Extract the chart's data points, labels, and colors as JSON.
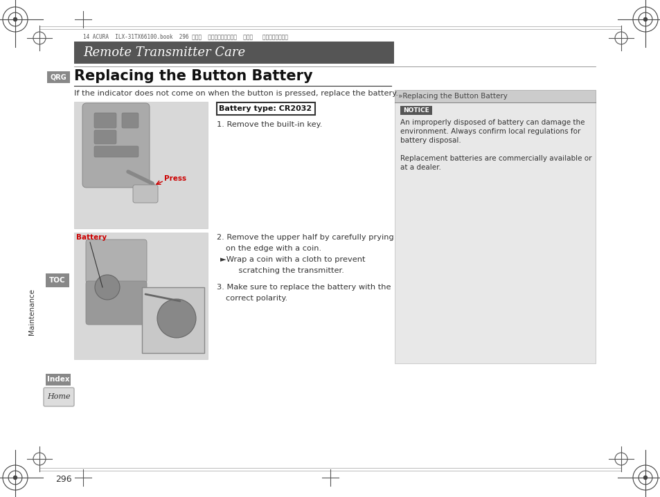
{
  "page_bg": "#ffffff",
  "header_bg": "#555555",
  "header_text": "Remote Transmitter Care",
  "header_text_color": "#ffffff",
  "top_meta": "14 ACURA  ILX-31TX66100.book  296 ページ  ２０１３年３月７日  木曜日   午前１１時３３分",
  "section_title": "Replacing the Button Battery",
  "qrg_label": "QRG",
  "toc_label": "TOC",
  "index_label": "Index",
  "maintenance_label": "Maintenance",
  "home_label": "Home",
  "intro_text": "If the indicator does not come on when the button is pressed, replace the battery.",
  "battery_type_box": "Battery type: CR2032",
  "step1": "1. Remove the built-in key.",
  "step2_line1": "2. Remove the upper half by carefully prying",
  "step2_line2": "on the edge with a coin.",
  "step2_line3": "►Wrap a coin with a cloth to prevent",
  "step2_line4": "    scratching the transmitter.",
  "step3_line1": "3. Make sure to replace the battery with the",
  "step3_line2": "correct polarity.",
  "press_label": "Press",
  "battery_label": "Battery",
  "right_panel_title": "»Replacing the Button Battery",
  "notice_label": "NOTICE",
  "notice_bg": "#555555",
  "notice_text1": "An improperly disposed of battery can damage the",
  "notice_text2": "environment. Always confirm local regulations for",
  "notice_text3": "battery disposal.",
  "notice_text4": "Replacement batteries are commercially available or",
  "notice_text5": "at a dealer.",
  "right_panel_bg": "#e8e8e8",
  "page_number": "296",
  "img1_bg": "#d8d8d8",
  "img2_bg": "#d8d8d8"
}
